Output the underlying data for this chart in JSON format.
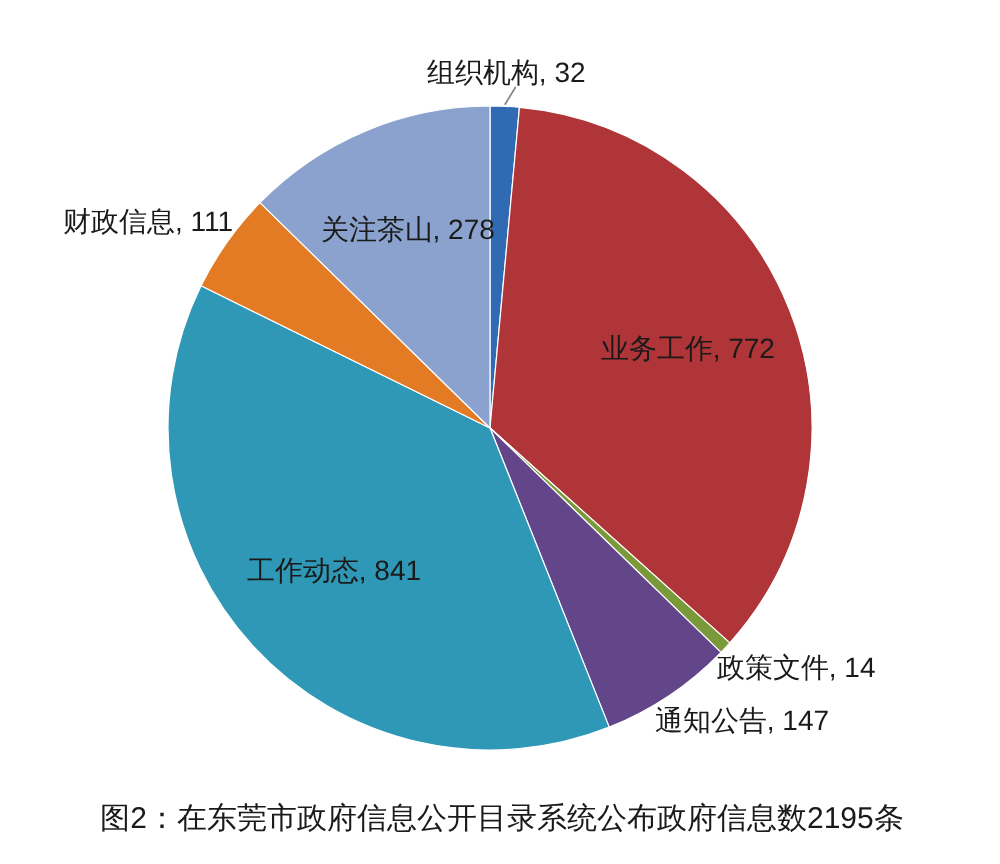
{
  "chart_data": {
    "type": "pie",
    "categories": [
      "组织机构",
      "业务工作",
      "政策文件",
      "通知公告",
      "工作动态",
      "财政信息",
      "关注茶山"
    ],
    "values": [
      32,
      772,
      14,
      147,
      841,
      111,
      278
    ],
    "value_labels": [
      ", 32",
      ", 772",
      ", 14",
      ", 147",
      ", 841",
      ", 111",
      ", 278"
    ],
    "colors": [
      "#2f6ab3",
      "#b03538",
      "#7a9a3a",
      "#63468a",
      "#2e98b6",
      "#e27b24",
      "#8aa2cd"
    ],
    "annotations": [
      "图2：在东莞市政府信息公开目录系统公布政府信息数2195条"
    ]
  }
}
